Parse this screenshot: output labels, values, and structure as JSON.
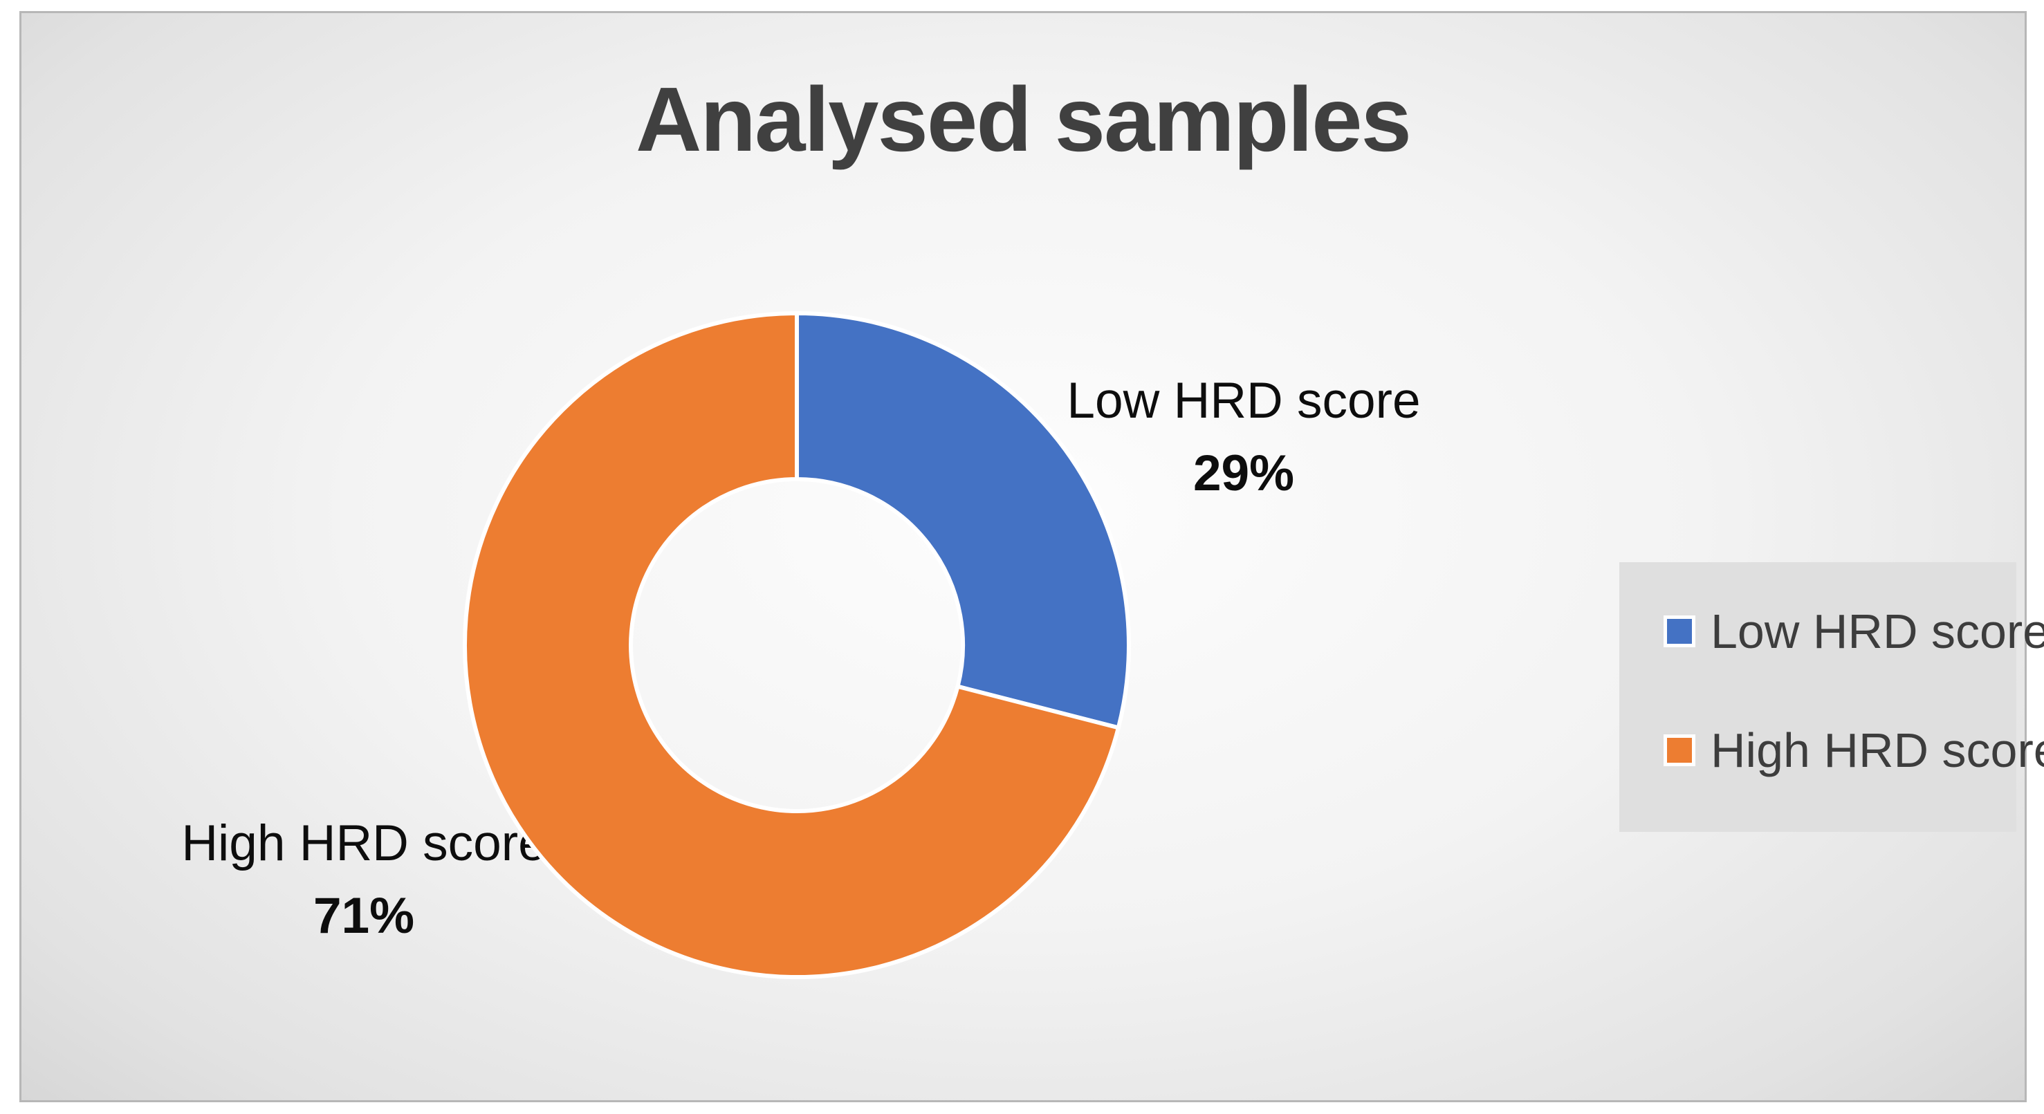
{
  "chart_data": {
    "type": "pie",
    "subtype": "doughnut",
    "title": "Analysed samples",
    "categories": [
      "Low HRD score",
      "High HRD score"
    ],
    "values": [
      29,
      71
    ],
    "labels_pct": [
      "29%",
      "71%"
    ],
    "colors": [
      "#4472C4",
      "#ED7D31"
    ],
    "slice_border_color": "#FFFFFF",
    "hole_ratio": 0.5,
    "start_angle_deg": 0,
    "direction": "clockwise",
    "legend_position": "right",
    "data_label_style": "category name and percentage, outside end"
  },
  "theme": {
    "title_color": "#404040",
    "label_color": "#0D0D0D",
    "legend_text_color": "#3D3D3D",
    "legend_bg": "#DFDFDF",
    "slide_border": "#B7B7B7",
    "grad_inner": "#FDFDFD",
    "grad_outer": "#C6C6C6"
  }
}
